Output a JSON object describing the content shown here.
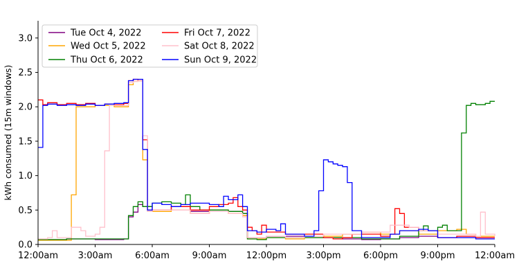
{
  "chart_data": {
    "type": "line",
    "step": true,
    "interval_minutes": 15,
    "title": "",
    "xlabel": "",
    "ylabel": "kWh consumed (15m windows)",
    "xlim": [
      0,
      24
    ],
    "ylim": [
      0,
      3.25
    ],
    "x_ticks": [
      {
        "value": 0,
        "label": "12:00am"
      },
      {
        "value": 3,
        "label": "3:00am"
      },
      {
        "value": 6,
        "label": "6:00am"
      },
      {
        "value": 9,
        "label": "9:00am"
      },
      {
        "value": 12,
        "label": "12:00pm"
      },
      {
        "value": 15,
        "label": "3:00pm"
      },
      {
        "value": 18,
        "label": "6:00pm"
      },
      {
        "value": 21,
        "label": "9:00pm"
      },
      {
        "value": 24,
        "label": "12:00am"
      }
    ],
    "y_ticks": [
      {
        "value": 0,
        "label": "0.0"
      },
      {
        "value": 0.5,
        "label": "0.5"
      },
      {
        "value": 1.0,
        "label": "1.0"
      },
      {
        "value": 1.5,
        "label": "1.5"
      },
      {
        "value": 2.0,
        "label": "2.0"
      },
      {
        "value": 2.5,
        "label": "2.5"
      },
      {
        "value": 3.0,
        "label": "3.0"
      }
    ],
    "grid": false,
    "legend_position": "upper-left",
    "series": [
      {
        "name": "Tue Oct 4, 2022",
        "color": "#800080",
        "points": [
          [
            0,
            0.07
          ],
          [
            1.5,
            0.08
          ],
          [
            3,
            0.07
          ],
          [
            4.5,
            0.08
          ],
          [
            4.75,
            0.4
          ],
          [
            5,
            0.47
          ],
          [
            5.25,
            0.58
          ],
          [
            5.5,
            0.55
          ],
          [
            6,
            0.5
          ],
          [
            7,
            0.55
          ],
          [
            8,
            0.48
          ],
          [
            9,
            0.5
          ],
          [
            10,
            0.48
          ],
          [
            10.75,
            0.45
          ],
          [
            11,
            0.1
          ],
          [
            11.5,
            0.1
          ],
          [
            12,
            0.12
          ],
          [
            13,
            0.12
          ],
          [
            14,
            0.1
          ],
          [
            15,
            0.1
          ],
          [
            16,
            0.08
          ],
          [
            17,
            0.07
          ],
          [
            18,
            0.08
          ],
          [
            19,
            0.1
          ],
          [
            20,
            0.12
          ],
          [
            21,
            0.1
          ],
          [
            22,
            0.1
          ],
          [
            23,
            0.1
          ],
          [
            24,
            0.1
          ]
        ]
      },
      {
        "name": "Wed Oct 5, 2022",
        "color": "#FFA500",
        "points": [
          [
            0,
            0.06
          ],
          [
            1.5,
            0.06
          ],
          [
            1.75,
            0.72
          ],
          [
            2,
            2.0
          ],
          [
            3,
            2.02
          ],
          [
            4,
            2.0
          ],
          [
            4.75,
            2.32
          ],
          [
            5,
            2.37
          ],
          [
            5.25,
            2.38
          ],
          [
            5.5,
            1.23
          ],
          [
            5.75,
            0.5
          ],
          [
            6,
            0.48
          ],
          [
            7,
            0.5
          ],
          [
            8,
            0.45
          ],
          [
            9,
            0.5
          ],
          [
            10,
            0.45
          ],
          [
            10.75,
            0.42
          ],
          [
            11,
            0.08
          ],
          [
            12,
            0.1
          ],
          [
            13,
            0.08
          ],
          [
            14,
            0.1
          ],
          [
            15,
            0.12
          ],
          [
            16,
            0.15
          ],
          [
            17,
            0.18
          ],
          [
            18,
            0.15
          ],
          [
            19,
            0.2
          ],
          [
            20,
            0.15
          ],
          [
            21,
            0.2
          ],
          [
            22,
            0.22
          ],
          [
            22.5,
            0.15
          ],
          [
            23,
            0.12
          ],
          [
            24,
            0.12
          ]
        ]
      },
      {
        "name": "Thu Oct 6, 2022",
        "color": "#008000",
        "points": [
          [
            0,
            0.07
          ],
          [
            1.5,
            0.08
          ],
          [
            3,
            0.08
          ],
          [
            4,
            0.08
          ],
          [
            4.75,
            0.42
          ],
          [
            5,
            0.55
          ],
          [
            5.25,
            0.62
          ],
          [
            5.5,
            0.55
          ],
          [
            6,
            0.6
          ],
          [
            6.5,
            0.62
          ],
          [
            7,
            0.6
          ],
          [
            7.5,
            0.58
          ],
          [
            7.75,
            0.72
          ],
          [
            8,
            0.55
          ],
          [
            8.5,
            0.5
          ],
          [
            9,
            0.5
          ],
          [
            10,
            0.48
          ],
          [
            10.75,
            0.45
          ],
          [
            11,
            0.08
          ],
          [
            11.5,
            0.07
          ],
          [
            12,
            0.1
          ],
          [
            13,
            0.1
          ],
          [
            14,
            0.1
          ],
          [
            15,
            0.1
          ],
          [
            16,
            0.1
          ],
          [
            17,
            0.08
          ],
          [
            18,
            0.08
          ],
          [
            19,
            0.12
          ],
          [
            20,
            0.2
          ],
          [
            20.25,
            0.27
          ],
          [
            20.5,
            0.2
          ],
          [
            21,
            0.25
          ],
          [
            21.25,
            0.28
          ],
          [
            21.5,
            0.2
          ],
          [
            22,
            0.2
          ],
          [
            22.25,
            1.62
          ],
          [
            22.5,
            2.02
          ],
          [
            22.75,
            2.05
          ],
          [
            23,
            2.03
          ],
          [
            23.5,
            2.05
          ],
          [
            23.75,
            2.08
          ],
          [
            24,
            2.08
          ]
        ]
      },
      {
        "name": "Fri Oct 7, 2022",
        "color": "#FF0000",
        "points": [
          [
            0,
            2.1
          ],
          [
            0.25,
            2.03
          ],
          [
            0.5,
            2.06
          ],
          [
            1,
            2.03
          ],
          [
            1.5,
            2.05
          ],
          [
            2,
            2.03
          ],
          [
            2.5,
            2.05
          ],
          [
            3,
            2.02
          ],
          [
            3.5,
            2.04
          ],
          [
            4,
            2.03
          ],
          [
            4.5,
            2.05
          ],
          [
            4.75,
            2.38
          ],
          [
            5,
            2.4
          ],
          [
            5.25,
            2.38
          ],
          [
            5.5,
            1.52
          ],
          [
            5.75,
            0.48
          ],
          [
            6,
            0.5
          ],
          [
            7,
            0.55
          ],
          [
            8,
            0.5
          ],
          [
            9,
            0.55
          ],
          [
            9.5,
            0.58
          ],
          [
            10,
            0.6
          ],
          [
            10.25,
            0.68
          ],
          [
            10.5,
            0.55
          ],
          [
            10.75,
            0.5
          ],
          [
            11,
            0.25
          ],
          [
            11.25,
            0.2
          ],
          [
            11.5,
            0.15
          ],
          [
            11.75,
            0.28
          ],
          [
            12,
            0.18
          ],
          [
            13,
            0.15
          ],
          [
            14,
            0.15
          ],
          [
            15,
            0.1
          ],
          [
            15.5,
            0.08
          ],
          [
            16,
            0.1
          ],
          [
            16.5,
            0.15
          ],
          [
            17,
            0.15
          ],
          [
            18,
            0.12
          ],
          [
            18.5,
            0.15
          ],
          [
            18.75,
            0.52
          ],
          [
            19,
            0.45
          ],
          [
            19.25,
            0.25
          ],
          [
            20,
            0.2
          ],
          [
            21,
            0.1
          ],
          [
            22,
            0.12
          ],
          [
            23,
            0.1
          ],
          [
            24,
            0.1
          ]
        ]
      },
      {
        "name": "Sat Oct 8, 2022",
        "color": "#FFC0CB",
        "points": [
          [
            0,
            0.08
          ],
          [
            0.5,
            0.1
          ],
          [
            0.75,
            0.2
          ],
          [
            1,
            0.1
          ],
          [
            1.5,
            0.1
          ],
          [
            1.75,
            0.25
          ],
          [
            2,
            0.25
          ],
          [
            2.25,
            0.2
          ],
          [
            2.5,
            0.12
          ],
          [
            3,
            0.15
          ],
          [
            3.25,
            0.25
          ],
          [
            3.5,
            1.36
          ],
          [
            3.75,
            2.02
          ],
          [
            4,
            2.02
          ],
          [
            4.75,
            2.35
          ],
          [
            5,
            2.37
          ],
          [
            5.25,
            2.38
          ],
          [
            5.5,
            1.58
          ],
          [
            5.75,
            0.48
          ],
          [
            6,
            0.5
          ],
          [
            7,
            0.5
          ],
          [
            8,
            0.45
          ],
          [
            9,
            0.48
          ],
          [
            10,
            0.45
          ],
          [
            10.75,
            0.4
          ],
          [
            11,
            0.1
          ],
          [
            12,
            0.12
          ],
          [
            13,
            0.1
          ],
          [
            14,
            0.12
          ],
          [
            15,
            0.15
          ],
          [
            16,
            0.15
          ],
          [
            17,
            0.18
          ],
          [
            18,
            0.18
          ],
          [
            18.5,
            0.28
          ],
          [
            19,
            0.28
          ],
          [
            19.5,
            0.25
          ],
          [
            20,
            0.2
          ],
          [
            21,
            0.15
          ],
          [
            22,
            0.15
          ],
          [
            23,
            0.12
          ],
          [
            23.25,
            0.47
          ],
          [
            23.5,
            0.15
          ],
          [
            24,
            0.12
          ]
        ]
      },
      {
        "name": "Sun Oct 9, 2022",
        "color": "#0000FF",
        "points": [
          [
            0,
            1.41
          ],
          [
            0.25,
            2.02
          ],
          [
            0.5,
            2.04
          ],
          [
            1,
            2.02
          ],
          [
            1.5,
            2.03
          ],
          [
            2,
            2.02
          ],
          [
            2.5,
            2.04
          ],
          [
            3,
            2.02
          ],
          [
            3.5,
            2.04
          ],
          [
            4,
            2.05
          ],
          [
            4.5,
            2.06
          ],
          [
            4.75,
            2.38
          ],
          [
            5,
            2.4
          ],
          [
            5.25,
            2.4
          ],
          [
            5.5,
            1.38
          ],
          [
            5.75,
            0.5
          ],
          [
            6,
            0.6
          ],
          [
            6.5,
            0.58
          ],
          [
            7,
            0.55
          ],
          [
            7.5,
            0.58
          ],
          [
            8,
            0.6
          ],
          [
            8.5,
            0.6
          ],
          [
            9,
            0.58
          ],
          [
            9.5,
            0.55
          ],
          [
            9.75,
            0.7
          ],
          [
            10,
            0.65
          ],
          [
            10.5,
            0.72
          ],
          [
            10.75,
            0.55
          ],
          [
            11,
            0.2
          ],
          [
            11.5,
            0.18
          ],
          [
            12,
            0.22
          ],
          [
            12.5,
            0.2
          ],
          [
            12.75,
            0.3
          ],
          [
            13,
            0.15
          ],
          [
            14,
            0.12
          ],
          [
            14.5,
            0.2
          ],
          [
            14.75,
            0.78
          ],
          [
            15,
            1.23
          ],
          [
            15.25,
            1.2
          ],
          [
            15.5,
            1.17
          ],
          [
            15.75,
            1.15
          ],
          [
            16,
            1.13
          ],
          [
            16.25,
            0.9
          ],
          [
            16.5,
            0.2
          ],
          [
            17,
            0.1
          ],
          [
            18,
            0.1
          ],
          [
            18.5,
            0.15
          ],
          [
            19,
            0.2
          ],
          [
            20,
            0.22
          ],
          [
            20.5,
            0.2
          ],
          [
            21,
            0.1
          ],
          [
            22,
            0.1
          ],
          [
            23,
            0.08
          ],
          [
            24,
            0.08
          ]
        ]
      }
    ]
  }
}
